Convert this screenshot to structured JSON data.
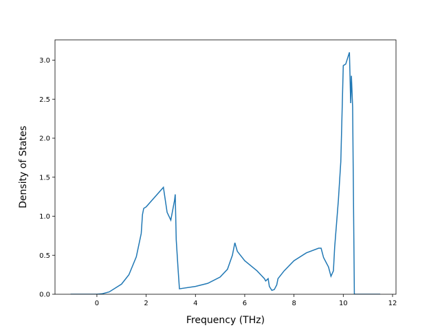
{
  "chart_data": {
    "type": "line",
    "xlabel": "Frequency (THz)",
    "ylabel": "Density of States",
    "color": "#1f77b4",
    "x": [
      -1.07,
      0,
      0.2,
      0.5,
      1.0,
      1.3,
      1.6,
      1.8,
      1.85,
      1.9,
      2.0,
      2.7,
      2.85,
      3.0,
      3.15,
      3.18,
      3.22,
      3.3,
      3.35,
      4.0,
      4.5,
      5.0,
      5.3,
      5.5,
      5.6,
      5.7,
      6.0,
      6.5,
      6.8,
      6.85,
      6.95,
      7.0,
      7.1,
      7.2,
      7.3,
      7.35,
      7.6,
      8.0,
      8.5,
      9.0,
      9.1,
      9.2,
      9.4,
      9.5,
      9.6,
      9.65,
      9.8,
      9.9,
      10.0,
      10.1,
      10.2,
      10.25,
      10.3,
      10.33,
      10.38,
      10.45,
      11.5
    ],
    "values": [
      0,
      0,
      0.005,
      0.03,
      0.13,
      0.25,
      0.48,
      0.78,
      1.02,
      1.1,
      1.12,
      1.37,
      1.05,
      0.95,
      1.2,
      1.28,
      0.7,
      0.3,
      0.07,
      0.1,
      0.14,
      0.22,
      0.32,
      0.5,
      0.66,
      0.55,
      0.43,
      0.3,
      0.2,
      0.17,
      0.2,
      0.1,
      0.05,
      0.06,
      0.12,
      0.2,
      0.3,
      0.43,
      0.53,
      0.59,
      0.59,
      0.47,
      0.35,
      0.23,
      0.3,
      0.6,
      1.2,
      1.7,
      2.93,
      2.95,
      3.05,
      3.1,
      2.45,
      2.8,
      2.4,
      0,
      0
    ],
    "xlim": [
      -1.7,
      12.14
    ],
    "xticks": [
      0,
      2,
      4,
      6,
      8,
      10,
      12
    ],
    "ylim": [
      0,
      3.26
    ],
    "yticks": [
      {
        "value": 0,
        "label": "0.0"
      },
      0.5,
      {
        "value": 1,
        "label": "1.0"
      },
      1.5,
      {
        "value": 2,
        "label": "2.0"
      },
      2.5,
      {
        "value": 3,
        "label": "3.0"
      }
    ]
  }
}
